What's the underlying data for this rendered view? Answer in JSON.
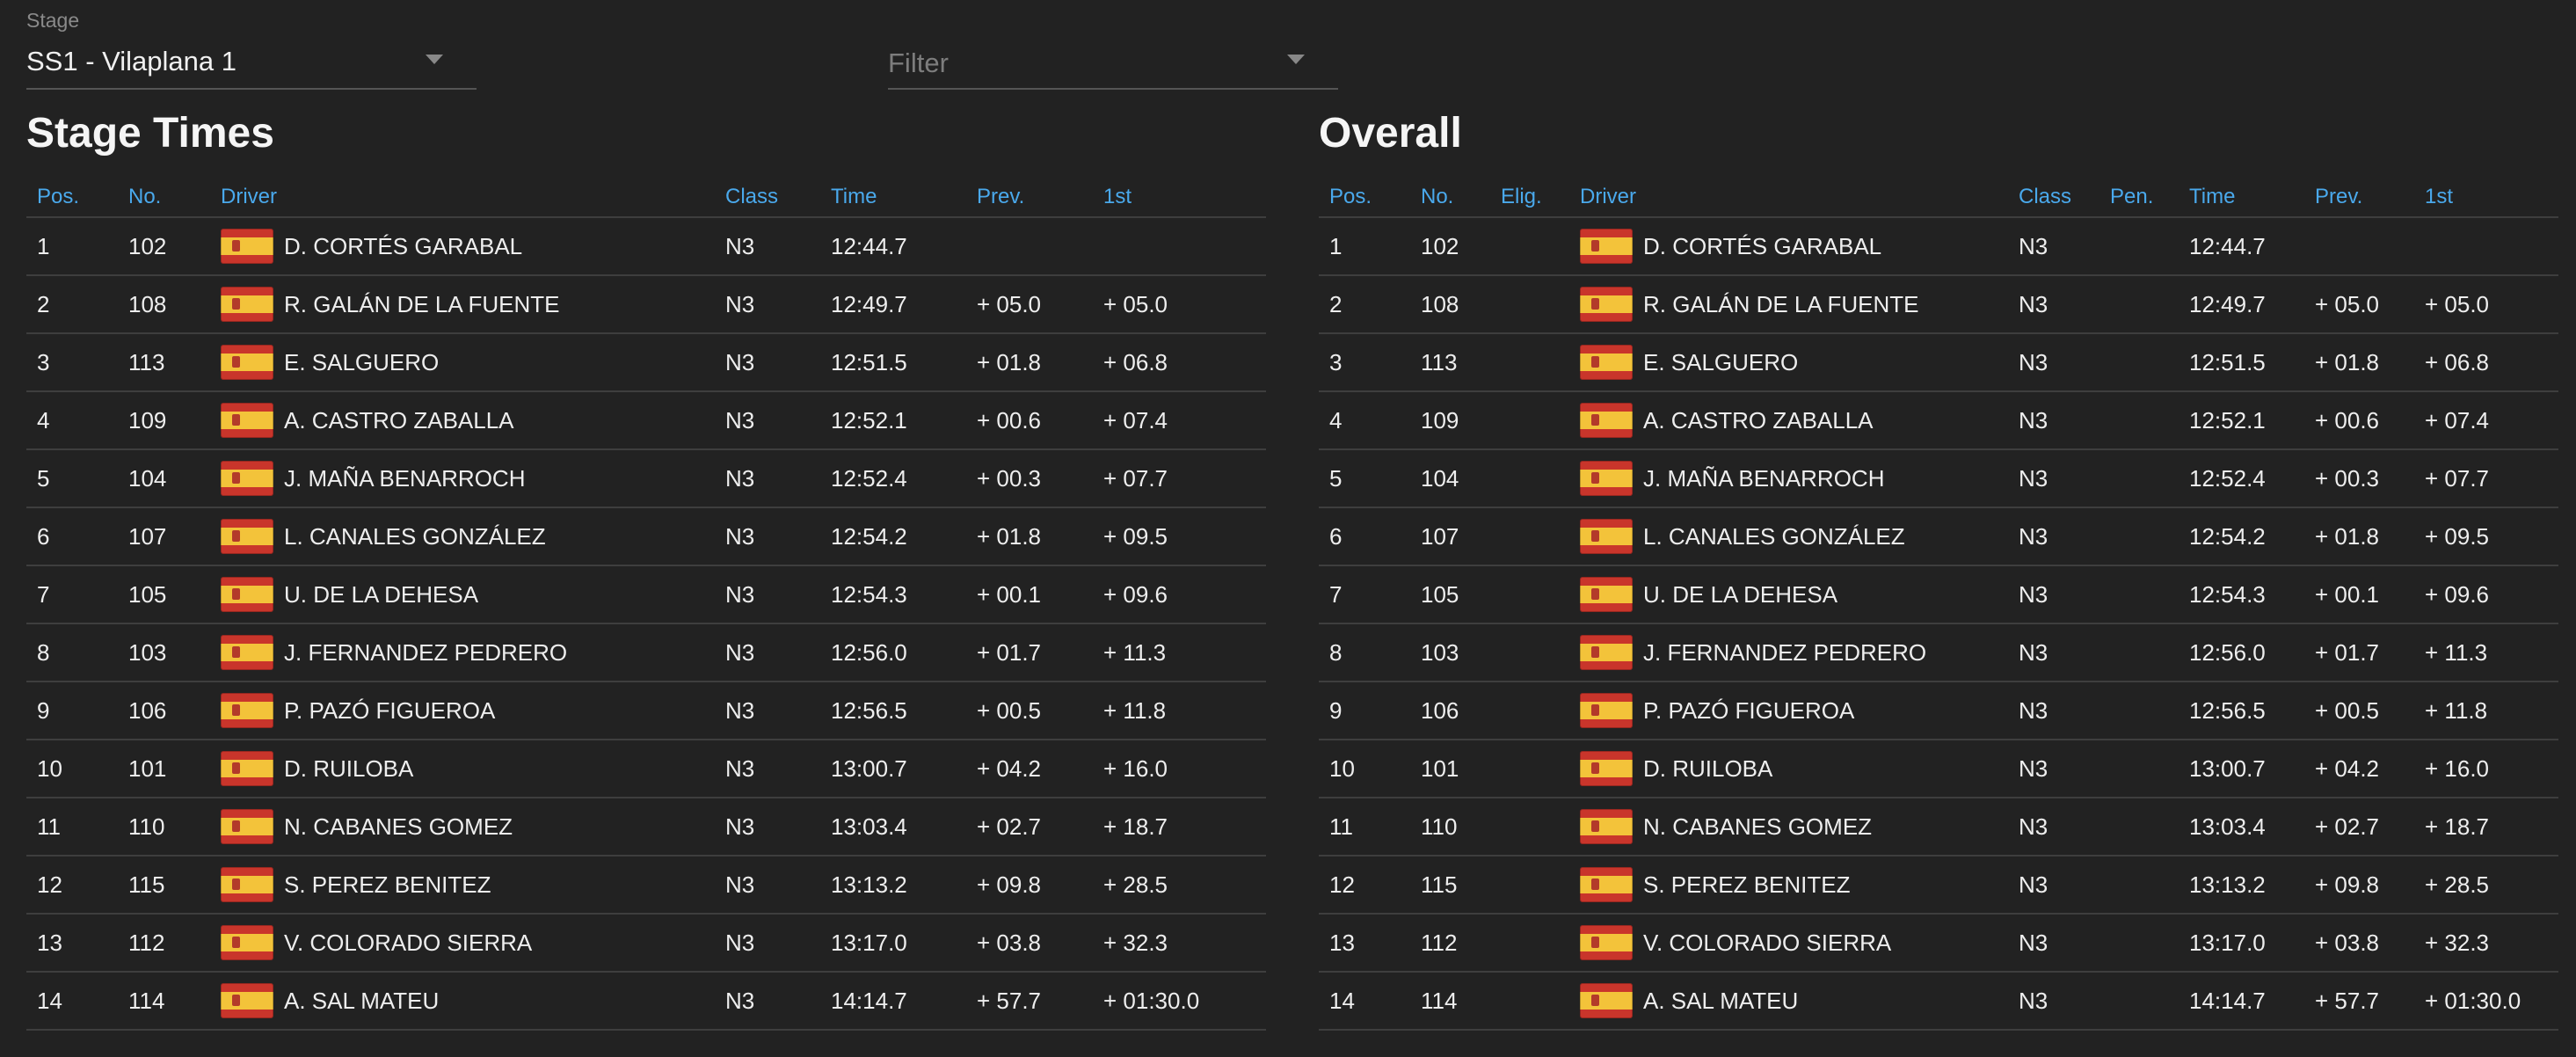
{
  "stage_select": {
    "label": "Stage",
    "value": "SS1 - Vilaplana 1"
  },
  "filter_select": {
    "placeholder": "Filter"
  },
  "stage_times": {
    "title": "Stage Times",
    "headers": {
      "pos": "Pos.",
      "no": "No.",
      "driver": "Driver",
      "class": "Class",
      "time": "Time",
      "prev": "Prev.",
      "first": "1st"
    },
    "rows": [
      {
        "pos": "1",
        "no": "102",
        "driver": "D. CORTÉS GARABAL",
        "class": "N3",
        "time": "12:44.7",
        "prev": "",
        "first": ""
      },
      {
        "pos": "2",
        "no": "108",
        "driver": "R. GALÁN DE LA FUENTE",
        "class": "N3",
        "time": "12:49.7",
        "prev": "+ 05.0",
        "first": "+ 05.0"
      },
      {
        "pos": "3",
        "no": "113",
        "driver": "E. SALGUERO",
        "class": "N3",
        "time": "12:51.5",
        "prev": "+ 01.8",
        "first": "+ 06.8"
      },
      {
        "pos": "4",
        "no": "109",
        "driver": "A. CASTRO ZABALLA",
        "class": "N3",
        "time": "12:52.1",
        "prev": "+ 00.6",
        "first": "+ 07.4"
      },
      {
        "pos": "5",
        "no": "104",
        "driver": "J. MAÑA BENARROCH",
        "class": "N3",
        "time": "12:52.4",
        "prev": "+ 00.3",
        "first": "+ 07.7"
      },
      {
        "pos": "6",
        "no": "107",
        "driver": "L. CANALES GONZÁLEZ",
        "class": "N3",
        "time": "12:54.2",
        "prev": "+ 01.8",
        "first": "+ 09.5"
      },
      {
        "pos": "7",
        "no": "105",
        "driver": "U. DE LA DEHESA",
        "class": "N3",
        "time": "12:54.3",
        "prev": "+ 00.1",
        "first": "+ 09.6"
      },
      {
        "pos": "8",
        "no": "103",
        "driver": "J. FERNANDEZ PEDRERO",
        "class": "N3",
        "time": "12:56.0",
        "prev": "+ 01.7",
        "first": "+ 11.3"
      },
      {
        "pos": "9",
        "no": "106",
        "driver": "P. PAZÓ FIGUEROA",
        "class": "N3",
        "time": "12:56.5",
        "prev": "+ 00.5",
        "first": "+ 11.8"
      },
      {
        "pos": "10",
        "no": "101",
        "driver": "D. RUILOBA",
        "class": "N3",
        "time": "13:00.7",
        "prev": "+ 04.2",
        "first": "+ 16.0"
      },
      {
        "pos": "11",
        "no": "110",
        "driver": "N. CABANES GOMEZ",
        "class": "N3",
        "time": "13:03.4",
        "prev": "+ 02.7",
        "first": "+ 18.7"
      },
      {
        "pos": "12",
        "no": "115",
        "driver": "S. PEREZ BENITEZ",
        "class": "N3",
        "time": "13:13.2",
        "prev": "+ 09.8",
        "first": "+ 28.5"
      },
      {
        "pos": "13",
        "no": "112",
        "driver": "V. COLORADO SIERRA",
        "class": "N3",
        "time": "13:17.0",
        "prev": "+ 03.8",
        "first": "+ 32.3"
      },
      {
        "pos": "14",
        "no": "114",
        "driver": "A. SAL MATEU",
        "class": "N3",
        "time": "14:14.7",
        "prev": "+ 57.7",
        "first": "+ 01:30.0"
      }
    ]
  },
  "overall": {
    "title": "Overall",
    "headers": {
      "pos": "Pos.",
      "no": "No.",
      "elig": "Elig.",
      "driver": "Driver",
      "class": "Class",
      "pen": "Pen.",
      "time": "Time",
      "prev": "Prev.",
      "first": "1st"
    },
    "rows": [
      {
        "pos": "1",
        "no": "102",
        "elig": "",
        "driver": "D. CORTÉS GARABAL",
        "class": "N3",
        "pen": "",
        "time": "12:44.7",
        "prev": "",
        "first": ""
      },
      {
        "pos": "2",
        "no": "108",
        "elig": "",
        "driver": "R. GALÁN DE LA FUENTE",
        "class": "N3",
        "pen": "",
        "time": "12:49.7",
        "prev": "+ 05.0",
        "first": "+ 05.0"
      },
      {
        "pos": "3",
        "no": "113",
        "elig": "",
        "driver": "E. SALGUERO",
        "class": "N3",
        "pen": "",
        "time": "12:51.5",
        "prev": "+ 01.8",
        "first": "+ 06.8"
      },
      {
        "pos": "4",
        "no": "109",
        "elig": "",
        "driver": "A. CASTRO ZABALLA",
        "class": "N3",
        "pen": "",
        "time": "12:52.1",
        "prev": "+ 00.6",
        "first": "+ 07.4"
      },
      {
        "pos": "5",
        "no": "104",
        "elig": "",
        "driver": "J. MAÑA BENARROCH",
        "class": "N3",
        "pen": "",
        "time": "12:52.4",
        "prev": "+ 00.3",
        "first": "+ 07.7"
      },
      {
        "pos": "6",
        "no": "107",
        "elig": "",
        "driver": "L. CANALES GONZÁLEZ",
        "class": "N3",
        "pen": "",
        "time": "12:54.2",
        "prev": "+ 01.8",
        "first": "+ 09.5"
      },
      {
        "pos": "7",
        "no": "105",
        "elig": "",
        "driver": "U. DE LA DEHESA",
        "class": "N3",
        "pen": "",
        "time": "12:54.3",
        "prev": "+ 00.1",
        "first": "+ 09.6"
      },
      {
        "pos": "8",
        "no": "103",
        "elig": "",
        "driver": "J. FERNANDEZ PEDRERO",
        "class": "N3",
        "pen": "",
        "time": "12:56.0",
        "prev": "+ 01.7",
        "first": "+ 11.3"
      },
      {
        "pos": "9",
        "no": "106",
        "elig": "",
        "driver": "P. PAZÓ FIGUEROA",
        "class": "N3",
        "pen": "",
        "time": "12:56.5",
        "prev": "+ 00.5",
        "first": "+ 11.8"
      },
      {
        "pos": "10",
        "no": "101",
        "elig": "",
        "driver": "D. RUILOBA",
        "class": "N3",
        "pen": "",
        "time": "13:00.7",
        "prev": "+ 04.2",
        "first": "+ 16.0"
      },
      {
        "pos": "11",
        "no": "110",
        "elig": "",
        "driver": "N. CABANES GOMEZ",
        "class": "N3",
        "pen": "",
        "time": "13:03.4",
        "prev": "+ 02.7",
        "first": "+ 18.7"
      },
      {
        "pos": "12",
        "no": "115",
        "elig": "",
        "driver": "S. PEREZ BENITEZ",
        "class": "N3",
        "pen": "",
        "time": "13:13.2",
        "prev": "+ 09.8",
        "first": "+ 28.5"
      },
      {
        "pos": "13",
        "no": "112",
        "elig": "",
        "driver": "V. COLORADO SIERRA",
        "class": "N3",
        "pen": "",
        "time": "13:17.0",
        "prev": "+ 03.8",
        "first": "+ 32.3"
      },
      {
        "pos": "14",
        "no": "114",
        "elig": "",
        "driver": "A. SAL MATEU",
        "class": "N3",
        "pen": "",
        "time": "14:14.7",
        "prev": "+ 57.7",
        "first": "+ 01:30.0"
      }
    ]
  },
  "flag_icon": "spain-flag-icon",
  "colors": {
    "background": "#222222",
    "header_accent": "#4aa9ec",
    "divider": "#3e3e3e"
  }
}
